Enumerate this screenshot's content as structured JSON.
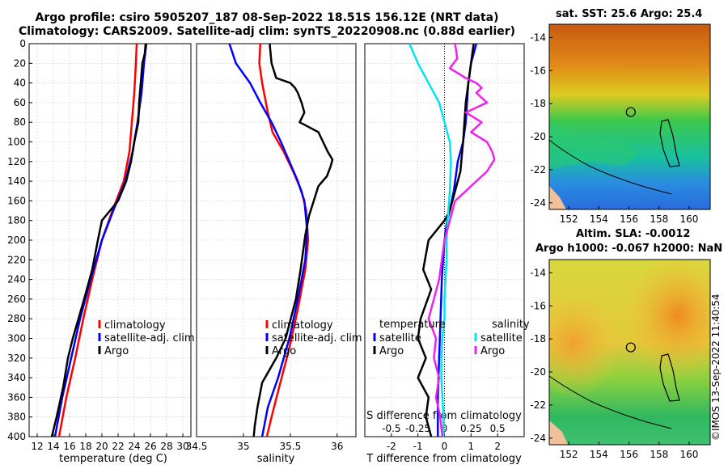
{
  "header": {
    "title_line1": "Argo profile: csiro 5905207_187 08-Sep-2022 18.51S 156.12E (NRT data)",
    "title_line2": "Climatology: CARS2009. Satellite-adj clim: synTS_20220908.nc (0.88d earlier)"
  },
  "colors": {
    "climatology": "#ff0000",
    "satellite_adj": "#0000ff",
    "argo": "#000000",
    "T_satellite": "#0000ff",
    "S_satellite": "#00e5ee",
    "S_argo": "#ee22ee"
  },
  "chart_data": [
    {
      "type": "line",
      "panel": "temperature",
      "xlabel": "temperature (deg C)",
      "ylabel": "",
      "xlim": [
        11,
        31
      ],
      "ylim": [
        400,
        0
      ],
      "xticks": [
        12,
        14,
        16,
        18,
        20,
        22,
        24,
        26,
        28,
        30
      ],
      "yticks": [
        0,
        20,
        40,
        60,
        80,
        100,
        120,
        140,
        160,
        180,
        200,
        220,
        240,
        260,
        280,
        300,
        320,
        340,
        360,
        380,
        400
      ],
      "legend": [
        "climatology",
        "satellite-adj. clim",
        "Argo"
      ],
      "legend_position": "lower-right",
      "series": [
        {
          "name": "climatology",
          "points": [
            [
              24.3,
              0
            ],
            [
              24.2,
              20
            ],
            [
              24.0,
              50
            ],
            [
              23.7,
              80
            ],
            [
              23.4,
              110
            ],
            [
              22.7,
              140
            ],
            [
              21.3,
              170
            ],
            [
              20.0,
              200
            ],
            [
              18.8,
              240
            ],
            [
              17.7,
              280
            ],
            [
              16.7,
              320
            ],
            [
              15.6,
              360
            ],
            [
              14.7,
              400
            ]
          ]
        },
        {
          "name": "satellite-adj. clim",
          "points": [
            [
              25.5,
              0
            ],
            [
              25.2,
              20
            ],
            [
              24.9,
              50
            ],
            [
              24.4,
              80
            ],
            [
              23.8,
              110
            ],
            [
              22.9,
              140
            ],
            [
              21.4,
              170
            ],
            [
              20.0,
              200
            ],
            [
              18.6,
              240
            ],
            [
              17.3,
              280
            ],
            [
              16.2,
              320
            ],
            [
              15.1,
              360
            ],
            [
              14.2,
              400
            ]
          ]
        },
        {
          "name": "Argo",
          "points": [
            [
              25.4,
              0
            ],
            [
              25.3,
              10
            ],
            [
              25.0,
              20
            ],
            [
              24.8,
              40
            ],
            [
              24.6,
              60
            ],
            [
              24.5,
              80
            ],
            [
              24.0,
              100
            ],
            [
              23.6,
              120
            ],
            [
              23.0,
              140
            ],
            [
              22.0,
              160
            ],
            [
              21.0,
              170
            ],
            [
              20.0,
              180
            ],
            [
              19.5,
              200
            ],
            [
              18.8,
              230
            ],
            [
              17.8,
              260
            ],
            [
              16.4,
              300
            ],
            [
              15.8,
              320
            ],
            [
              15.2,
              350
            ],
            [
              14.4,
              380
            ],
            [
              13.8,
              400
            ]
          ]
        }
      ]
    },
    {
      "type": "line",
      "panel": "salinity",
      "xlabel": "salinity",
      "xlim": [
        34.5,
        36.2
      ],
      "ylim": [
        400,
        0
      ],
      "xticks": [
        34.5,
        35,
        35.5,
        36
      ],
      "xtick_labels": [
        "34.5",
        "35",
        "35.5",
        "36"
      ],
      "legend": [
        "climatology",
        "satellite-adj. clim",
        "Argo"
      ],
      "legend_position": "lower-right",
      "series": [
        {
          "name": "climatology",
          "points": [
            [
              35.18,
              0
            ],
            [
              35.17,
              20
            ],
            [
              35.2,
              40
            ],
            [
              35.26,
              70
            ],
            [
              35.31,
              90
            ],
            [
              35.43,
              110
            ],
            [
              35.53,
              130
            ],
            [
              35.62,
              150
            ],
            [
              35.67,
              170
            ],
            [
              35.69,
              200
            ],
            [
              35.66,
              230
            ],
            [
              35.58,
              270
            ],
            [
              35.49,
              310
            ],
            [
              35.38,
              350
            ],
            [
              35.3,
              380
            ],
            [
              35.25,
              400
            ]
          ]
        },
        {
          "name": "satellite-adj. clim",
          "points": [
            [
              34.85,
              0
            ],
            [
              34.92,
              20
            ],
            [
              35.07,
              40
            ],
            [
              35.18,
              60
            ],
            [
              35.3,
              80
            ],
            [
              35.4,
              100
            ],
            [
              35.49,
              120
            ],
            [
              35.58,
              140
            ],
            [
              35.65,
              160
            ],
            [
              35.68,
              190
            ],
            [
              35.66,
              220
            ],
            [
              35.58,
              260
            ],
            [
              35.49,
              300
            ],
            [
              35.37,
              340
            ],
            [
              35.26,
              370
            ],
            [
              35.2,
              400
            ]
          ]
        },
        {
          "name": "Argo",
          "points": [
            [
              35.28,
              0
            ],
            [
              35.3,
              20
            ],
            [
              35.35,
              35
            ],
            [
              35.5,
              40
            ],
            [
              35.55,
              45
            ],
            [
              35.58,
              50
            ],
            [
              35.62,
              60
            ],
            [
              35.65,
              70
            ],
            [
              35.6,
              80
            ],
            [
              35.8,
              90
            ],
            [
              35.85,
              100
            ],
            [
              35.9,
              110
            ],
            [
              35.95,
              118
            ],
            [
              35.93,
              125
            ],
            [
              35.89,
              135
            ],
            [
              35.8,
              145
            ],
            [
              35.75,
              160
            ],
            [
              35.7,
              175
            ],
            [
              35.66,
              195
            ],
            [
              35.61,
              230
            ],
            [
              35.56,
              260
            ],
            [
              35.45,
              300
            ],
            [
              35.35,
              320
            ],
            [
              35.2,
              345
            ],
            [
              35.15,
              370
            ],
            [
              35.12,
              390
            ],
            [
              35.11,
              400
            ]
          ]
        }
      ]
    },
    {
      "type": "line",
      "panel": "differences",
      "xlabel": "T difference from climatology",
      "x2label": "S difference from climatology",
      "xlim": [
        -3,
        3
      ],
      "x2lim": [
        -0.75,
        0.75
      ],
      "ylim": [
        400,
        0
      ],
      "xticks": [
        -2,
        -1,
        0,
        1,
        2
      ],
      "x2ticks": [
        -0.5,
        -0.25,
        0,
        0.25,
        0.5
      ],
      "x2tick_labels": [
        "-0.5",
        "-0.25",
        "0",
        "0.25",
        "0.5"
      ],
      "legend_temperature_title": "temperature",
      "legend_salinity_title": "salinity",
      "legend_temperature": [
        "satellite",
        "Argo"
      ],
      "legend_salinity": [
        "satellite",
        "Argo"
      ],
      "series": [
        {
          "name": "T satellite",
          "axis": "T",
          "points": [
            [
              1.2,
              0
            ],
            [
              1.0,
              20
            ],
            [
              0.9,
              40
            ],
            [
              0.8,
              80
            ],
            [
              0.7,
              100
            ],
            [
              0.5,
              120
            ],
            [
              0.35,
              150
            ],
            [
              0.2,
              170
            ],
            [
              0.1,
              180
            ],
            [
              0.0,
              200
            ],
            [
              -0.1,
              240
            ],
            [
              -0.15,
              280
            ],
            [
              -0.2,
              320
            ],
            [
              -0.25,
              360
            ],
            [
              -0.25,
              400
            ]
          ]
        },
        {
          "name": "T Argo",
          "axis": "T",
          "points": [
            [
              1.1,
              0
            ],
            [
              1.0,
              20
            ],
            [
              0.9,
              40
            ],
            [
              0.8,
              60
            ],
            [
              0.7,
              100
            ],
            [
              0.6,
              130
            ],
            [
              0.4,
              150
            ],
            [
              0.2,
              170
            ],
            [
              0.0,
              180
            ],
            [
              -0.3,
              190
            ],
            [
              -0.6,
              200
            ],
            [
              -0.8,
              230
            ],
            [
              -0.5,
              250
            ],
            [
              -0.9,
              280
            ],
            [
              -1.0,
              300
            ],
            [
              -0.7,
              320
            ],
            [
              -1.0,
              340
            ],
            [
              -0.6,
              360
            ],
            [
              -0.7,
              380
            ],
            [
              -0.5,
              400
            ]
          ]
        },
        {
          "name": "S satellite",
          "axis": "S",
          "points": [
            [
              -0.33,
              0
            ],
            [
              -0.25,
              20
            ],
            [
              -0.15,
              40
            ],
            [
              -0.05,
              60
            ],
            [
              0.0,
              80
            ],
            [
              0.05,
              100
            ],
            [
              0.06,
              120
            ],
            [
              0.05,
              150
            ],
            [
              0.03,
              180
            ],
            [
              0.02,
              200
            ],
            [
              0.02,
              220
            ],
            [
              0.01,
              240
            ],
            [
              0.0,
              260
            ],
            [
              0.0,
              280
            ],
            [
              -0.02,
              300
            ],
            [
              -0.03,
              320
            ],
            [
              -0.03,
              340
            ],
            [
              -0.02,
              360
            ],
            [
              -0.01,
              380
            ],
            [
              -0.01,
              400
            ]
          ]
        },
        {
          "name": "S Argo",
          "axis": "S",
          "points": [
            [
              0.1,
              0
            ],
            [
              0.12,
              15
            ],
            [
              0.05,
              25
            ],
            [
              0.2,
              35
            ],
            [
              0.3,
              40
            ],
            [
              0.35,
              45
            ],
            [
              0.3,
              50
            ],
            [
              0.4,
              60
            ],
            [
              0.2,
              70
            ],
            [
              0.35,
              80
            ],
            [
              0.25,
              90
            ],
            [
              0.4,
              100
            ],
            [
              0.45,
              110
            ],
            [
              0.47,
              118
            ],
            [
              0.4,
              130
            ],
            [
              0.3,
              140
            ],
            [
              0.2,
              150
            ],
            [
              0.1,
              160
            ],
            [
              0.05,
              180
            ],
            [
              0.0,
              200
            ],
            [
              -0.05,
              240
            ],
            [
              -0.1,
              260
            ],
            [
              -0.15,
              280
            ],
            [
              -0.08,
              300
            ],
            [
              -0.1,
              320
            ],
            [
              -0.05,
              340
            ],
            [
              -0.08,
              360
            ],
            [
              -0.04,
              380
            ],
            [
              -0.02,
              400
            ]
          ]
        }
      ]
    },
    {
      "type": "heatmap",
      "panel": "sst_map",
      "title": "sat. SST: 25.6 Argo: 25.4",
      "xlim": [
        150.7,
        161.4
      ],
      "ylim": [
        -24.4,
        -13.2
      ],
      "xticks": [
        152,
        154,
        156,
        158,
        160
      ],
      "yticks": [
        -14,
        -16,
        -18,
        -20,
        -22,
        -24
      ],
      "argo_position": [
        156.12,
        -18.51
      ]
    },
    {
      "type": "heatmap",
      "panel": "sla_map",
      "title_line1": "Altim. SLA: -0.0012",
      "title_line2": "Argo h1000: -0.067 h2000: NaN",
      "xlim": [
        150.7,
        161.4
      ],
      "ylim": [
        -24.4,
        -13.2
      ],
      "xticks": [
        152,
        154,
        156,
        158,
        160
      ],
      "yticks": [
        -14,
        -16,
        -18,
        -20,
        -22,
        -24
      ],
      "argo_position": [
        156.12,
        -18.51
      ]
    }
  ],
  "watermark": "©IMOS 13-Sep-2022 11:40:54"
}
